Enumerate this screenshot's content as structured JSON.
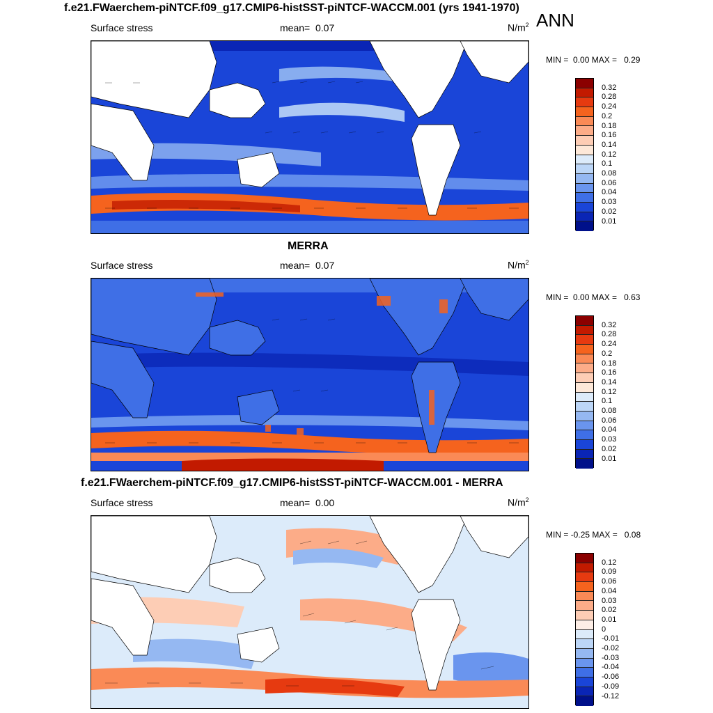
{
  "annual_tag": "ANN",
  "panels": [
    {
      "title": "f.e21.FWaerchem-piNTCF.f09_g17.CMIP6-histSST-piNTCF-WACCM.001 (yrs 1941-1970)",
      "variable": "Surface stress",
      "mean_label": "mean=",
      "mean_value": "0.07",
      "units": "N/m",
      "units_exp": "2",
      "min_label": "MIN =",
      "min_value": "0.00",
      "max_label": "MAX =",
      "max_value": "0.29",
      "colorbar": {
        "labels": [
          "0.32",
          "0.28",
          "0.24",
          "0.2",
          "0.18",
          "0.16",
          "0.14",
          "0.12",
          "0.1",
          "0.08",
          "0.06",
          "0.04",
          "0.03",
          "0.02",
          "0.01"
        ],
        "colors": [
          "#8b0000",
          "#c21a00",
          "#e63a10",
          "#f5631e",
          "#fa8a56",
          "#fcac88",
          "#fdcdb5",
          "#fde8d8",
          "#dcebfa",
          "#bcd6f7",
          "#95b8f2",
          "#6a95ee",
          "#3f6fe6",
          "#1a45d8",
          "#0a25b5",
          "#00108a"
        ]
      }
    },
    {
      "title": "MERRA",
      "variable": "Surface stress",
      "mean_label": "mean=",
      "mean_value": "0.07",
      "units": "N/m",
      "units_exp": "2",
      "min_label": "MIN =",
      "min_value": "0.00",
      "max_label": "MAX =",
      "max_value": "0.63",
      "colorbar": {
        "labels": [
          "0.32",
          "0.28",
          "0.24",
          "0.2",
          "0.18",
          "0.16",
          "0.14",
          "0.12",
          "0.1",
          "0.08",
          "0.06",
          "0.04",
          "0.03",
          "0.02",
          "0.01"
        ],
        "colors": [
          "#8b0000",
          "#c21a00",
          "#e63a10",
          "#f5631e",
          "#fa8a56",
          "#fcac88",
          "#fdcdb5",
          "#fde8d8",
          "#dcebfa",
          "#bcd6f7",
          "#95b8f2",
          "#6a95ee",
          "#3f6fe6",
          "#1a45d8",
          "#0a25b5",
          "#00108a"
        ]
      }
    },
    {
      "title": "f.e21.FWaerchem-piNTCF.f09_g17.CMIP6-histSST-piNTCF-WACCM.001 - MERRA",
      "variable": "Surface stress",
      "mean_label": "mean=",
      "mean_value": "0.00",
      "units": "N/m",
      "units_exp": "2",
      "min_label": "MIN =",
      "min_value": "-0.25",
      "max_label": "MAX =",
      "max_value": "0.08",
      "colorbar": {
        "labels": [
          "0.12",
          "0.09",
          "0.06",
          "0.04",
          "0.03",
          "0.02",
          "0.01",
          "0",
          "-0.01",
          "-0.02",
          "-0.03",
          "-0.04",
          "-0.06",
          "-0.09",
          "-0.12"
        ],
        "colors": [
          "#8b0000",
          "#c21a00",
          "#e63a10",
          "#f5631e",
          "#fa8a56",
          "#fcac88",
          "#fdcdb5",
          "#fdeee6",
          "#dcebfa",
          "#bcd6f7",
          "#95b8f2",
          "#6a95ee",
          "#3f6fe6",
          "#1a45d8",
          "#0a25b5",
          "#00108a"
        ]
      }
    }
  ]
}
